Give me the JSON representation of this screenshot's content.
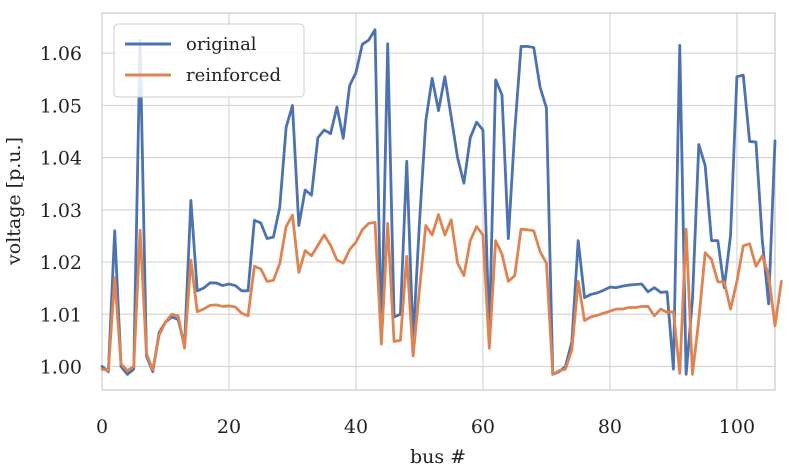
{
  "chart_data": {
    "type": "line",
    "title": "",
    "xlabel": "bus #",
    "ylabel": "voltage [p.u.]",
    "xlim": [
      0,
      106
    ],
    "ylim": [
      0.9955,
      1.0677
    ],
    "xticks": [
      0,
      20,
      40,
      60,
      80,
      100
    ],
    "yticks": [
      1.0,
      1.01,
      1.02,
      1.03,
      1.04,
      1.05,
      1.06
    ],
    "xtick_labels": [
      "0",
      "20",
      "40",
      "60",
      "80",
      "100"
    ],
    "ytick_labels": [
      "1.00",
      "1.01",
      "1.02",
      "1.03",
      "1.04",
      "1.05",
      "1.06"
    ],
    "grid": true,
    "legend_position": "top-left",
    "series": [
      {
        "name": "original",
        "color": "#4c72b0",
        "values": [
          1.0,
          0.999,
          1.026,
          1.0,
          0.9985,
          0.9995,
          1.0625,
          1.002,
          0.999,
          1.0065,
          1.0085,
          1.0095,
          1.009,
          1.004,
          1.0318,
          1.0145,
          1.015,
          1.016,
          1.016,
          1.0155,
          1.0158,
          1.0155,
          1.0145,
          1.0145,
          1.028,
          1.0275,
          1.0245,
          1.0248,
          1.0305,
          1.0458,
          1.05,
          1.027,
          1.0338,
          1.0328,
          1.0438,
          1.0453,
          1.0446,
          1.0497,
          1.0437,
          1.0538,
          1.0563,
          1.0617,
          1.0625,
          1.0645,
          1.005,
          1.0618,
          1.0095,
          1.01,
          1.0393,
          1.005,
          1.0275,
          1.047,
          1.0552,
          1.049,
          1.0555,
          1.0478,
          1.04,
          1.0351,
          1.0438,
          1.0468,
          1.0453,
          1.006,
          1.0549,
          1.052,
          1.0245,
          1.045,
          1.0613,
          1.0613,
          1.0611,
          1.0535,
          1.0495,
          0.9985,
          0.999,
          1.0,
          1.0047,
          1.0241,
          1.0132,
          1.0138,
          1.0141,
          1.0146,
          1.0152,
          1.0151,
          1.0154,
          1.0156,
          1.0157,
          1.0158,
          1.0143,
          1.0151,
          1.0142,
          1.0143,
          0.9995,
          1.0615,
          0.9985,
          1.0128,
          1.0425,
          1.0385,
          1.0241,
          1.0241,
          1.0151,
          1.0251,
          1.0555,
          1.0558,
          1.0431,
          1.043,
          1.0241,
          1.012,
          1.0432
        ]
      },
      {
        "name": "reinforced",
        "color": "#dd8452",
        "values": [
          0.9995,
          0.9992,
          1.017,
          1.0005,
          0.9992,
          1.0,
          1.0261,
          1.0025,
          0.9993,
          1.006,
          1.0085,
          1.01,
          1.0097,
          1.0035,
          1.0204,
          1.0105,
          1.011,
          1.0117,
          1.0118,
          1.0115,
          1.0116,
          1.0114,
          1.0102,
          1.0097,
          1.0192,
          1.0187,
          1.0163,
          1.0165,
          1.0197,
          1.0268,
          1.029,
          1.018,
          1.0222,
          1.0212,
          1.0232,
          1.0252,
          1.0232,
          1.0204,
          1.0198,
          1.0224,
          1.0238,
          1.0262,
          1.0274,
          1.0276,
          1.0043,
          1.0274,
          1.0048,
          1.005,
          1.0211,
          1.002,
          1.0147,
          1.027,
          1.0252,
          1.0291,
          1.0252,
          1.0281,
          1.0198,
          1.0174,
          1.0241,
          1.0268,
          1.0252,
          1.0035,
          1.0241,
          1.0215,
          1.0163,
          1.0174,
          1.0263,
          1.0262,
          1.026,
          1.022,
          1.0198,
          0.9985,
          0.9992,
          0.9995,
          1.0032,
          1.0163,
          1.0088,
          1.0095,
          1.0098,
          1.0102,
          1.0106,
          1.011,
          1.011,
          1.0113,
          1.0113,
          1.0115,
          1.0115,
          1.0097,
          1.011,
          1.0104,
          1.0105,
          0.9987,
          1.0263,
          0.9985,
          1.009,
          1.0218,
          1.0205,
          1.0162,
          1.0162,
          1.011,
          1.0163,
          1.0231,
          1.0235,
          1.0192,
          1.0212,
          1.0174,
          1.0078,
          1.0163
        ]
      }
    ]
  }
}
